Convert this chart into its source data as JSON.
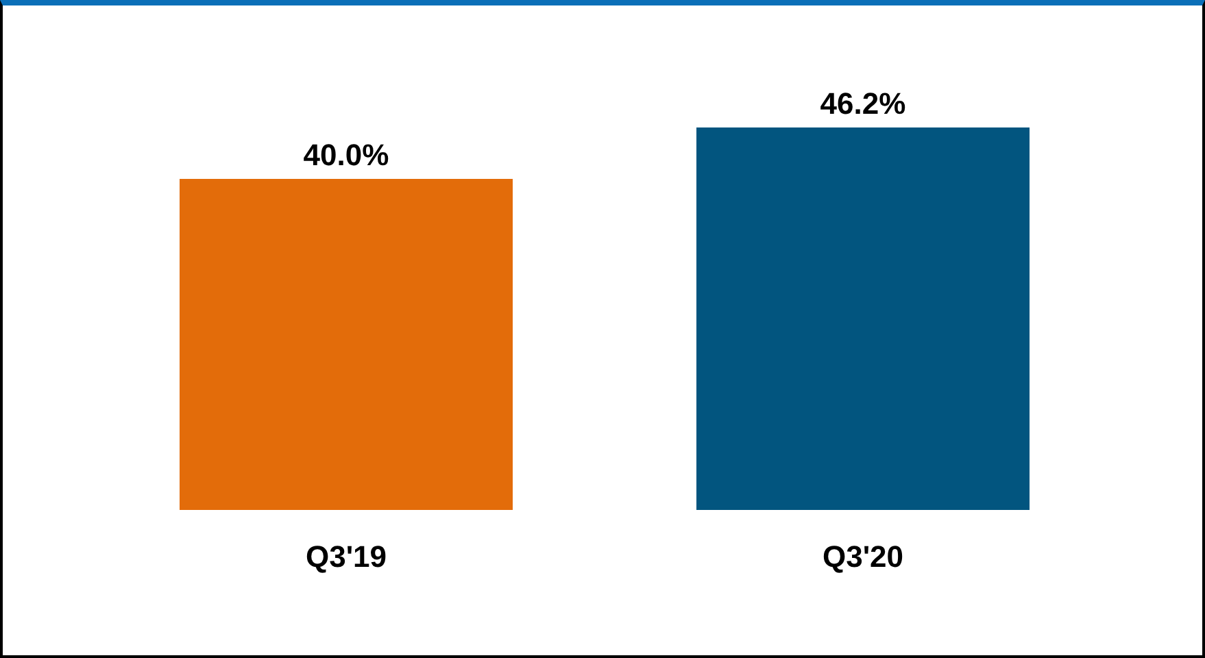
{
  "chart_data": {
    "type": "bar",
    "categories": [
      "Q3'19",
      "Q3'20"
    ],
    "values": [
      40.0,
      46.2
    ],
    "colors": [
      "#e36c0a",
      "#02557f"
    ],
    "value_labels": [
      "40.0%",
      "46.2%"
    ],
    "grid": false,
    "legend": false
  }
}
